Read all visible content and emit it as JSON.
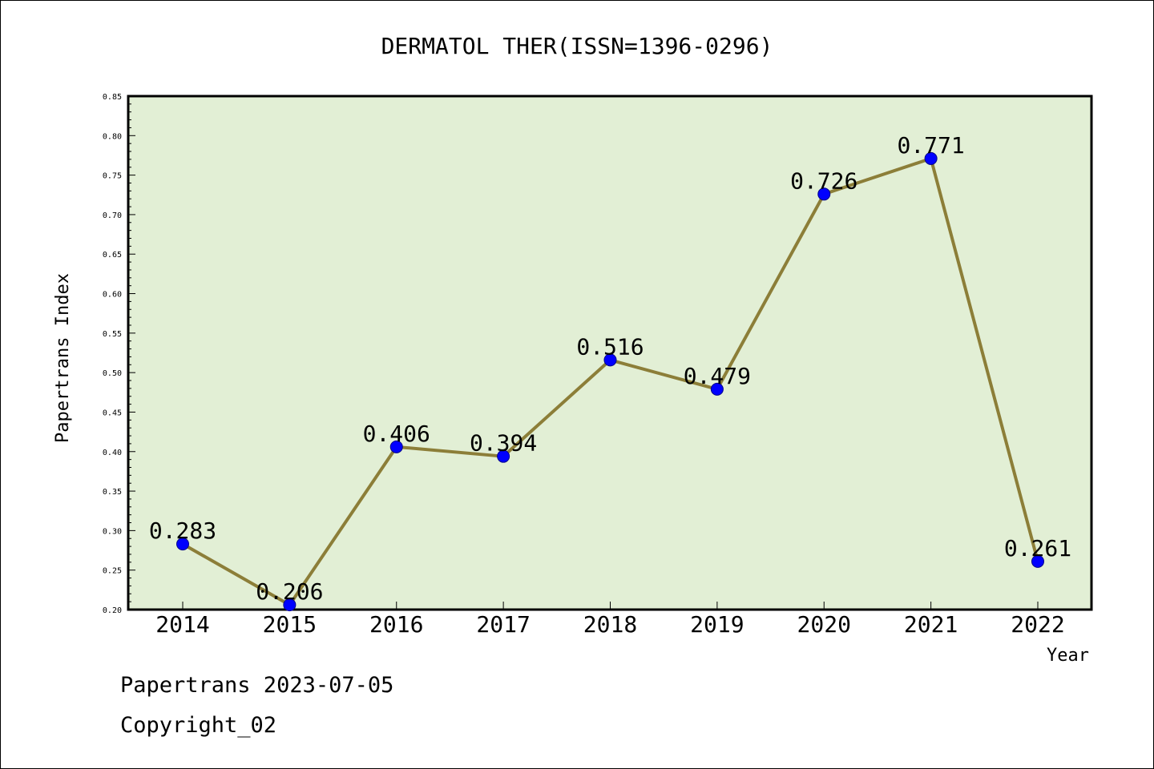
{
  "chart_data": {
    "type": "line",
    "title": "DERMATOL THER(ISSN=1396-0296)",
    "xlabel": "Year",
    "ylabel": "Papertrans Index",
    "categories": [
      "2014",
      "2015",
      "2016",
      "2017",
      "2018",
      "2019",
      "2020",
      "2021",
      "2022"
    ],
    "values": [
      0.283,
      0.206,
      0.406,
      0.394,
      0.516,
      0.479,
      0.726,
      0.771,
      0.261
    ],
    "data_labels": [
      "0.283",
      "0.206",
      "0.406",
      "0.394",
      "0.516",
      "0.479",
      "0.726",
      "0.771",
      "0.261"
    ],
    "ylim": [
      0.2,
      0.85
    ],
    "yticks": [
      "0.20",
      "0.25",
      "0.30",
      "0.35",
      "0.40",
      "0.45",
      "0.50",
      "0.55",
      "0.60",
      "0.65",
      "0.70",
      "0.75",
      "0.80",
      "0.85"
    ],
    "grid": false,
    "colors": {
      "plot_background": "#e2efd5",
      "line": "#8c7e38",
      "marker": "#0000ff"
    }
  },
  "footer": {
    "line1": "Papertrans 2023-07-05",
    "line2": "Copyright_02"
  }
}
